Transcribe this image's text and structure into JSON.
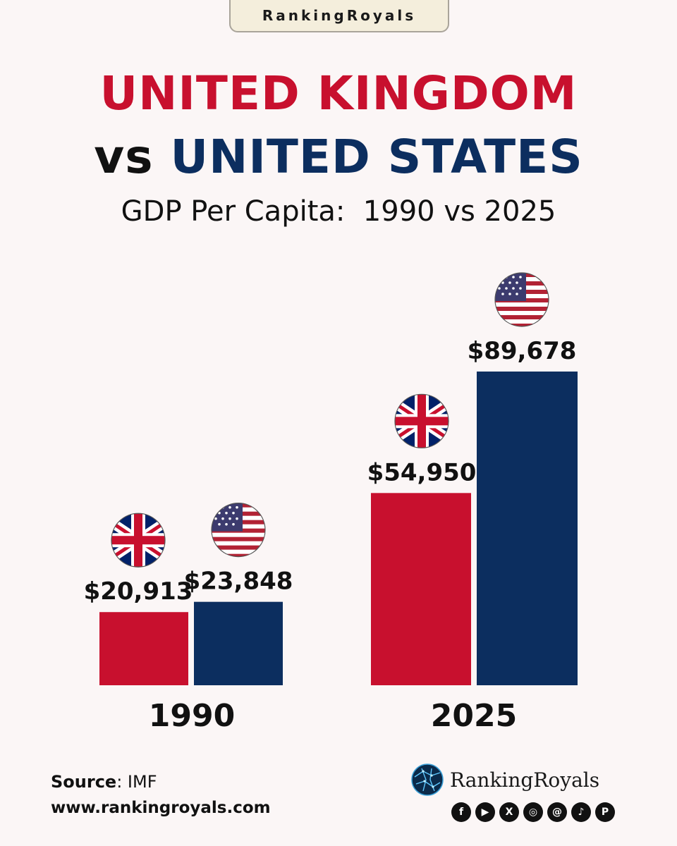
{
  "brand": {
    "label": "RankingRoyals"
  },
  "title": {
    "line1": "UNITED KINGDOM",
    "vs": "vs",
    "line2": "UNITED STATES"
  },
  "subtitle": "GDP Per Capita:  1990 vs 2025",
  "chart_data": {
    "type": "bar",
    "categories": [
      "1990",
      "2025"
    ],
    "series": [
      {
        "country": "United Kingdom",
        "flag_icon": "uk-flag-icon",
        "color": "#c8102e",
        "values": [
          20913,
          54950
        ],
        "labels": [
          "$20,913",
          "$54,950"
        ]
      },
      {
        "country": "United States",
        "flag_icon": "us-flag-icon",
        "color": "#0c2e5f",
        "values": [
          23848,
          89678
        ],
        "labels": [
          "$23,848",
          "$89,678"
        ]
      }
    ],
    "ylim": [
      0,
      100000
    ],
    "grid": false,
    "legend": "none"
  },
  "footer": {
    "source_label": "Source",
    "source_value": "IMF",
    "website": "www.rankingroyals.com",
    "logo_name": "RankingRoyals",
    "logo_icon": "globe-icon",
    "social_icons": [
      {
        "name": "facebook-icon",
        "glyph": "f"
      },
      {
        "name": "youtube-icon",
        "glyph": "▶"
      },
      {
        "name": "x-icon",
        "glyph": "X"
      },
      {
        "name": "instagram-icon",
        "glyph": "◎"
      },
      {
        "name": "threads-icon",
        "glyph": "@"
      },
      {
        "name": "tiktok-icon",
        "glyph": "♪"
      },
      {
        "name": "pinterest-icon",
        "glyph": "P"
      }
    ]
  }
}
